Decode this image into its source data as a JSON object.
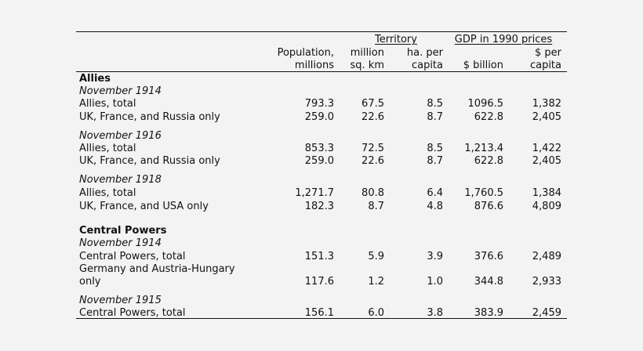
{
  "headers": {
    "territory": "Territory",
    "gdp": "GDP in 1990 prices",
    "population": [
      "Population,",
      "millions"
    ],
    "million_sq_km": [
      "million",
      "sq. km"
    ],
    "ha_per_capita": [
      "ha. per",
      "capita"
    ],
    "billion": "$ billion",
    "per_capita": [
      "$ per",
      "capita"
    ]
  },
  "sections": [
    {
      "title": "Allies",
      "groups": [
        {
          "period": "November 1914",
          "rows": [
            {
              "label": "Allies, total",
              "values": [
                "793.3",
                "67.5",
                "8.5",
                "1096.5",
                "1,382"
              ]
            },
            {
              "label": "UK, France, and Russia only",
              "values": [
                "259.0",
                "22.6",
                "8.7",
                "622.8",
                "2,405"
              ]
            }
          ]
        },
        {
          "period": "November 1916",
          "rows": [
            {
              "label": "Allies, total",
              "values": [
                "853.3",
                "72.5",
                "8.5",
                "1,213.4",
                "1,422"
              ]
            },
            {
              "label": "UK, France, and Russia only",
              "values": [
                "259.0",
                "22.6",
                "8.7",
                "622.8",
                "2,405"
              ]
            }
          ]
        },
        {
          "period": "November 1918",
          "rows": [
            {
              "label": "Allies, total",
              "values": [
                "1,271.7",
                "80.8",
                "6.4",
                "1,760.5",
                "1,384"
              ]
            },
            {
              "label": "UK, France, and USA only",
              "values": [
                "182.3",
                "8.7",
                "4.8",
                "876.6",
                "4,809"
              ]
            }
          ]
        }
      ]
    },
    {
      "title": "Central Powers",
      "groups": [
        {
          "period": "November 1914",
          "rows": [
            {
              "label": "Central Powers, total",
              "values": [
                "151.3",
                "5.9",
                "3.9",
                "376.6",
                "2,489"
              ]
            },
            {
              "label": [
                "Germany and Austria-Hungary",
                "only"
              ],
              "values": [
                "117.6",
                "1.2",
                "1.0",
                "344.8",
                "2,933"
              ]
            }
          ]
        },
        {
          "period": "November 1915",
          "rows": [
            {
              "label": "Central Powers, total",
              "values": [
                "156.1",
                "6.0",
                "3.8",
                "383.9",
                "2,459"
              ]
            }
          ]
        }
      ]
    }
  ]
}
